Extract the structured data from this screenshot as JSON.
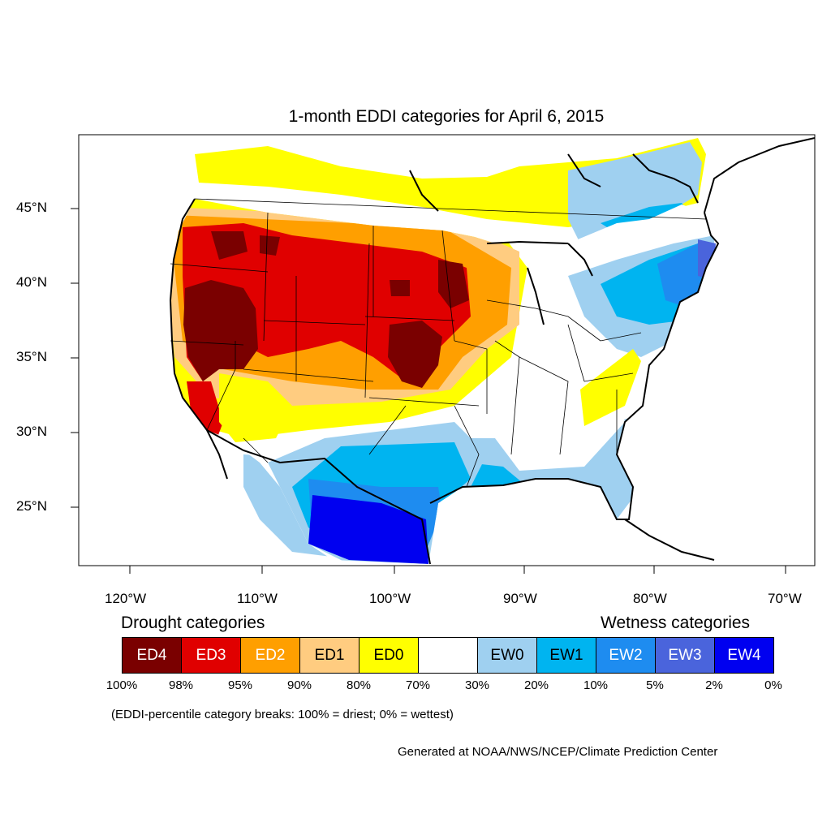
{
  "title": "1-month EDDI categories for April 6, 2015",
  "map": {
    "lon_ticks": [
      "120°W",
      "110°W",
      "100°W",
      "90°W",
      "80°W",
      "70°W"
    ],
    "lat_ticks": [
      "45°N",
      "40°N",
      "35°N",
      "30°N",
      "25°N"
    ]
  },
  "legend": {
    "drought_label": "Drought categories",
    "wetness_label": "Wetness categories",
    "categories": [
      {
        "label": "ED4",
        "color": "#7a0000",
        "text_color": "#ffffff"
      },
      {
        "label": "ED3",
        "color": "#e00000",
        "text_color": "#ffffff"
      },
      {
        "label": "ED2",
        "color": "#ff9f00",
        "text_color": "#ffffff"
      },
      {
        "label": "ED1",
        "color": "#ffcc80",
        "text_color": "#000000"
      },
      {
        "label": "ED0",
        "color": "#ffff00",
        "text_color": "#000000"
      },
      {
        "label": "",
        "color": "#ffffff",
        "text_color": "#000000"
      },
      {
        "label": "EW0",
        "color": "#9fd0f0",
        "text_color": "#000000"
      },
      {
        "label": "EW1",
        "color": "#00b4f0",
        "text_color": "#000000"
      },
      {
        "label": "EW2",
        "color": "#1e8cf0",
        "text_color": "#ffffff"
      },
      {
        "label": "EW3",
        "color": "#4a64dc",
        "text_color": "#ffffff"
      },
      {
        "label": "EW4",
        "color": "#0000f0",
        "text_color": "#ffffff"
      }
    ],
    "percentiles": [
      "100%",
      "98%",
      "95%",
      "90%",
      "80%",
      "70%",
      "30%",
      "20%",
      "10%",
      "5%",
      "2%",
      "0%"
    ]
  },
  "note": "(EDDI-percentile category breaks: 100% = driest; 0% = wettest)",
  "credit": "Generated at NOAA/NWS/NCEP/Climate Prediction Center"
}
